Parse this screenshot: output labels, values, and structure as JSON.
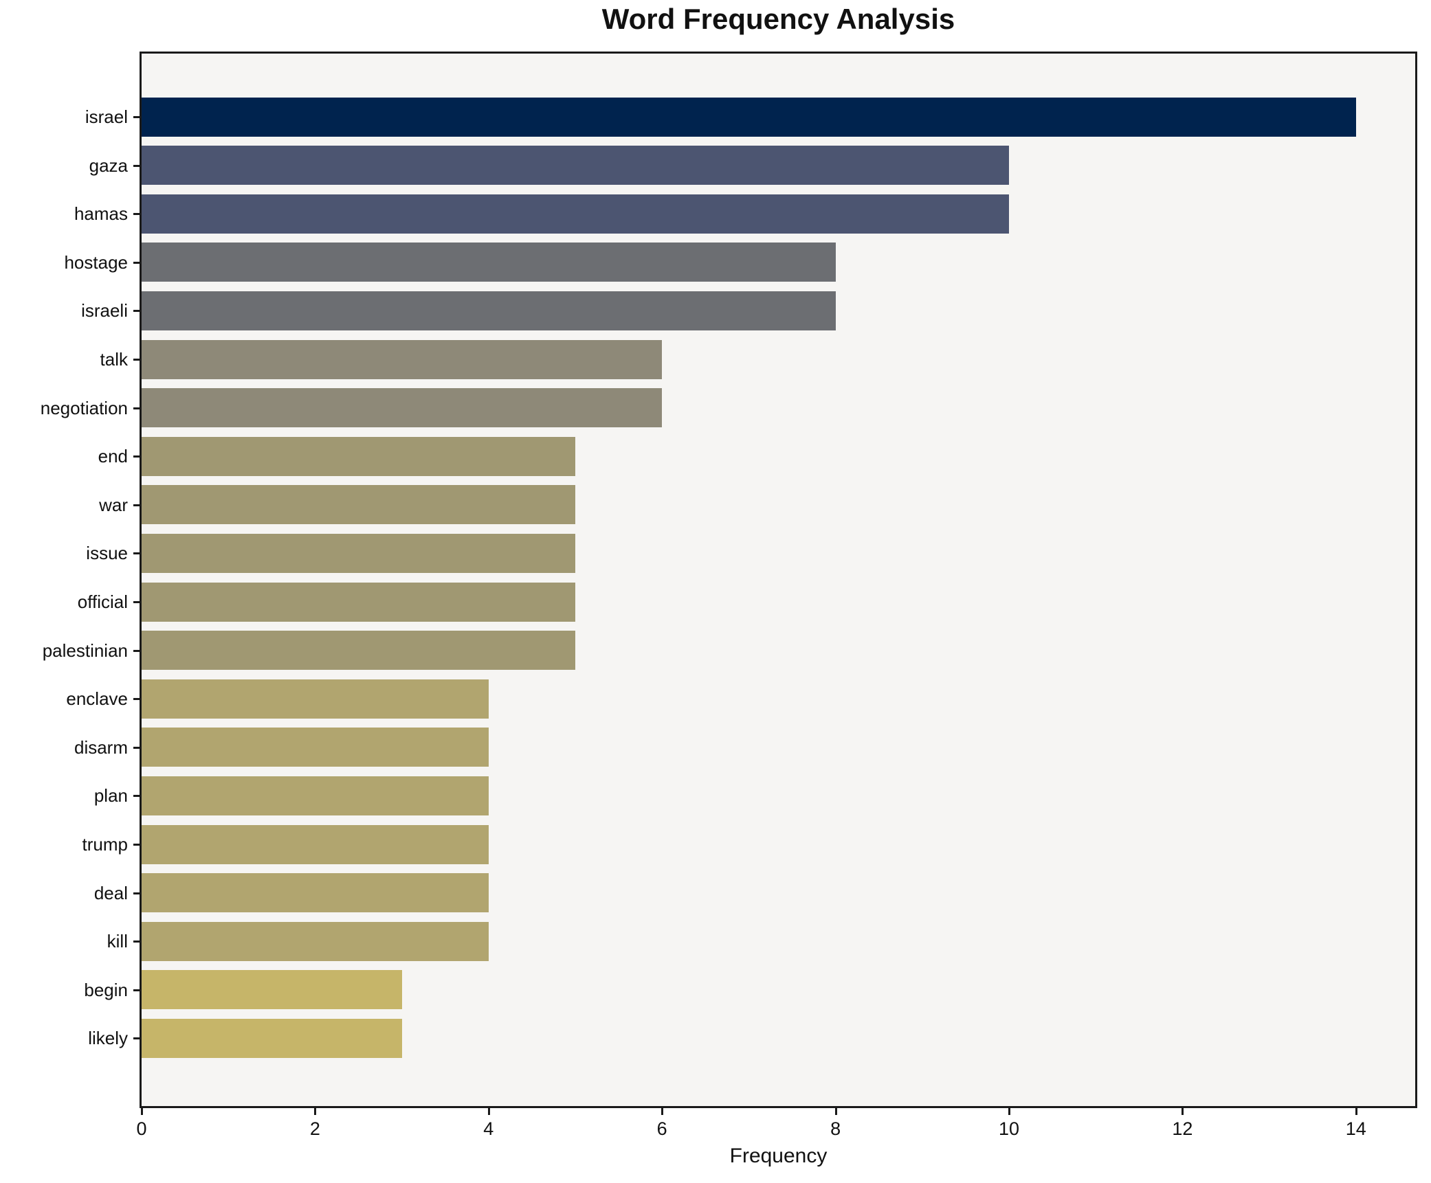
{
  "chart_data": {
    "type": "bar",
    "orientation": "horizontal",
    "title": "Word Frequency Analysis",
    "xlabel": "Frequency",
    "ylabel": "",
    "xlim": [
      0,
      14.68
    ],
    "xticks": [
      0,
      2,
      4,
      6,
      8,
      10,
      12,
      14
    ],
    "grid": false,
    "legend": null,
    "plot_background": "#f6f5f3",
    "figure_background": "#ffffff",
    "spine_color": "#1a1a1a",
    "categories": [
      "israel",
      "gaza",
      "hamas",
      "hostage",
      "israeli",
      "talk",
      "negotiation",
      "end",
      "war",
      "issue",
      "official",
      "palestinian",
      "enclave",
      "disarm",
      "plan",
      "trump",
      "deal",
      "kill",
      "begin",
      "likely"
    ],
    "values": [
      14,
      10,
      10,
      8,
      8,
      6,
      6,
      5,
      5,
      5,
      5,
      5,
      4,
      4,
      4,
      4,
      4,
      4,
      3,
      3
    ],
    "bar_colors": [
      "#00234e",
      "#4c5571",
      "#4c5571",
      "#6c6e72",
      "#6c6e72",
      "#8e8978",
      "#8e8978",
      "#a09872",
      "#a09872",
      "#a09872",
      "#a09872",
      "#a09872",
      "#b1a56f",
      "#b1a56f",
      "#b1a56f",
      "#b1a56f",
      "#b1a56f",
      "#b1a56f",
      "#c6b569",
      "#c6b569"
    ]
  }
}
